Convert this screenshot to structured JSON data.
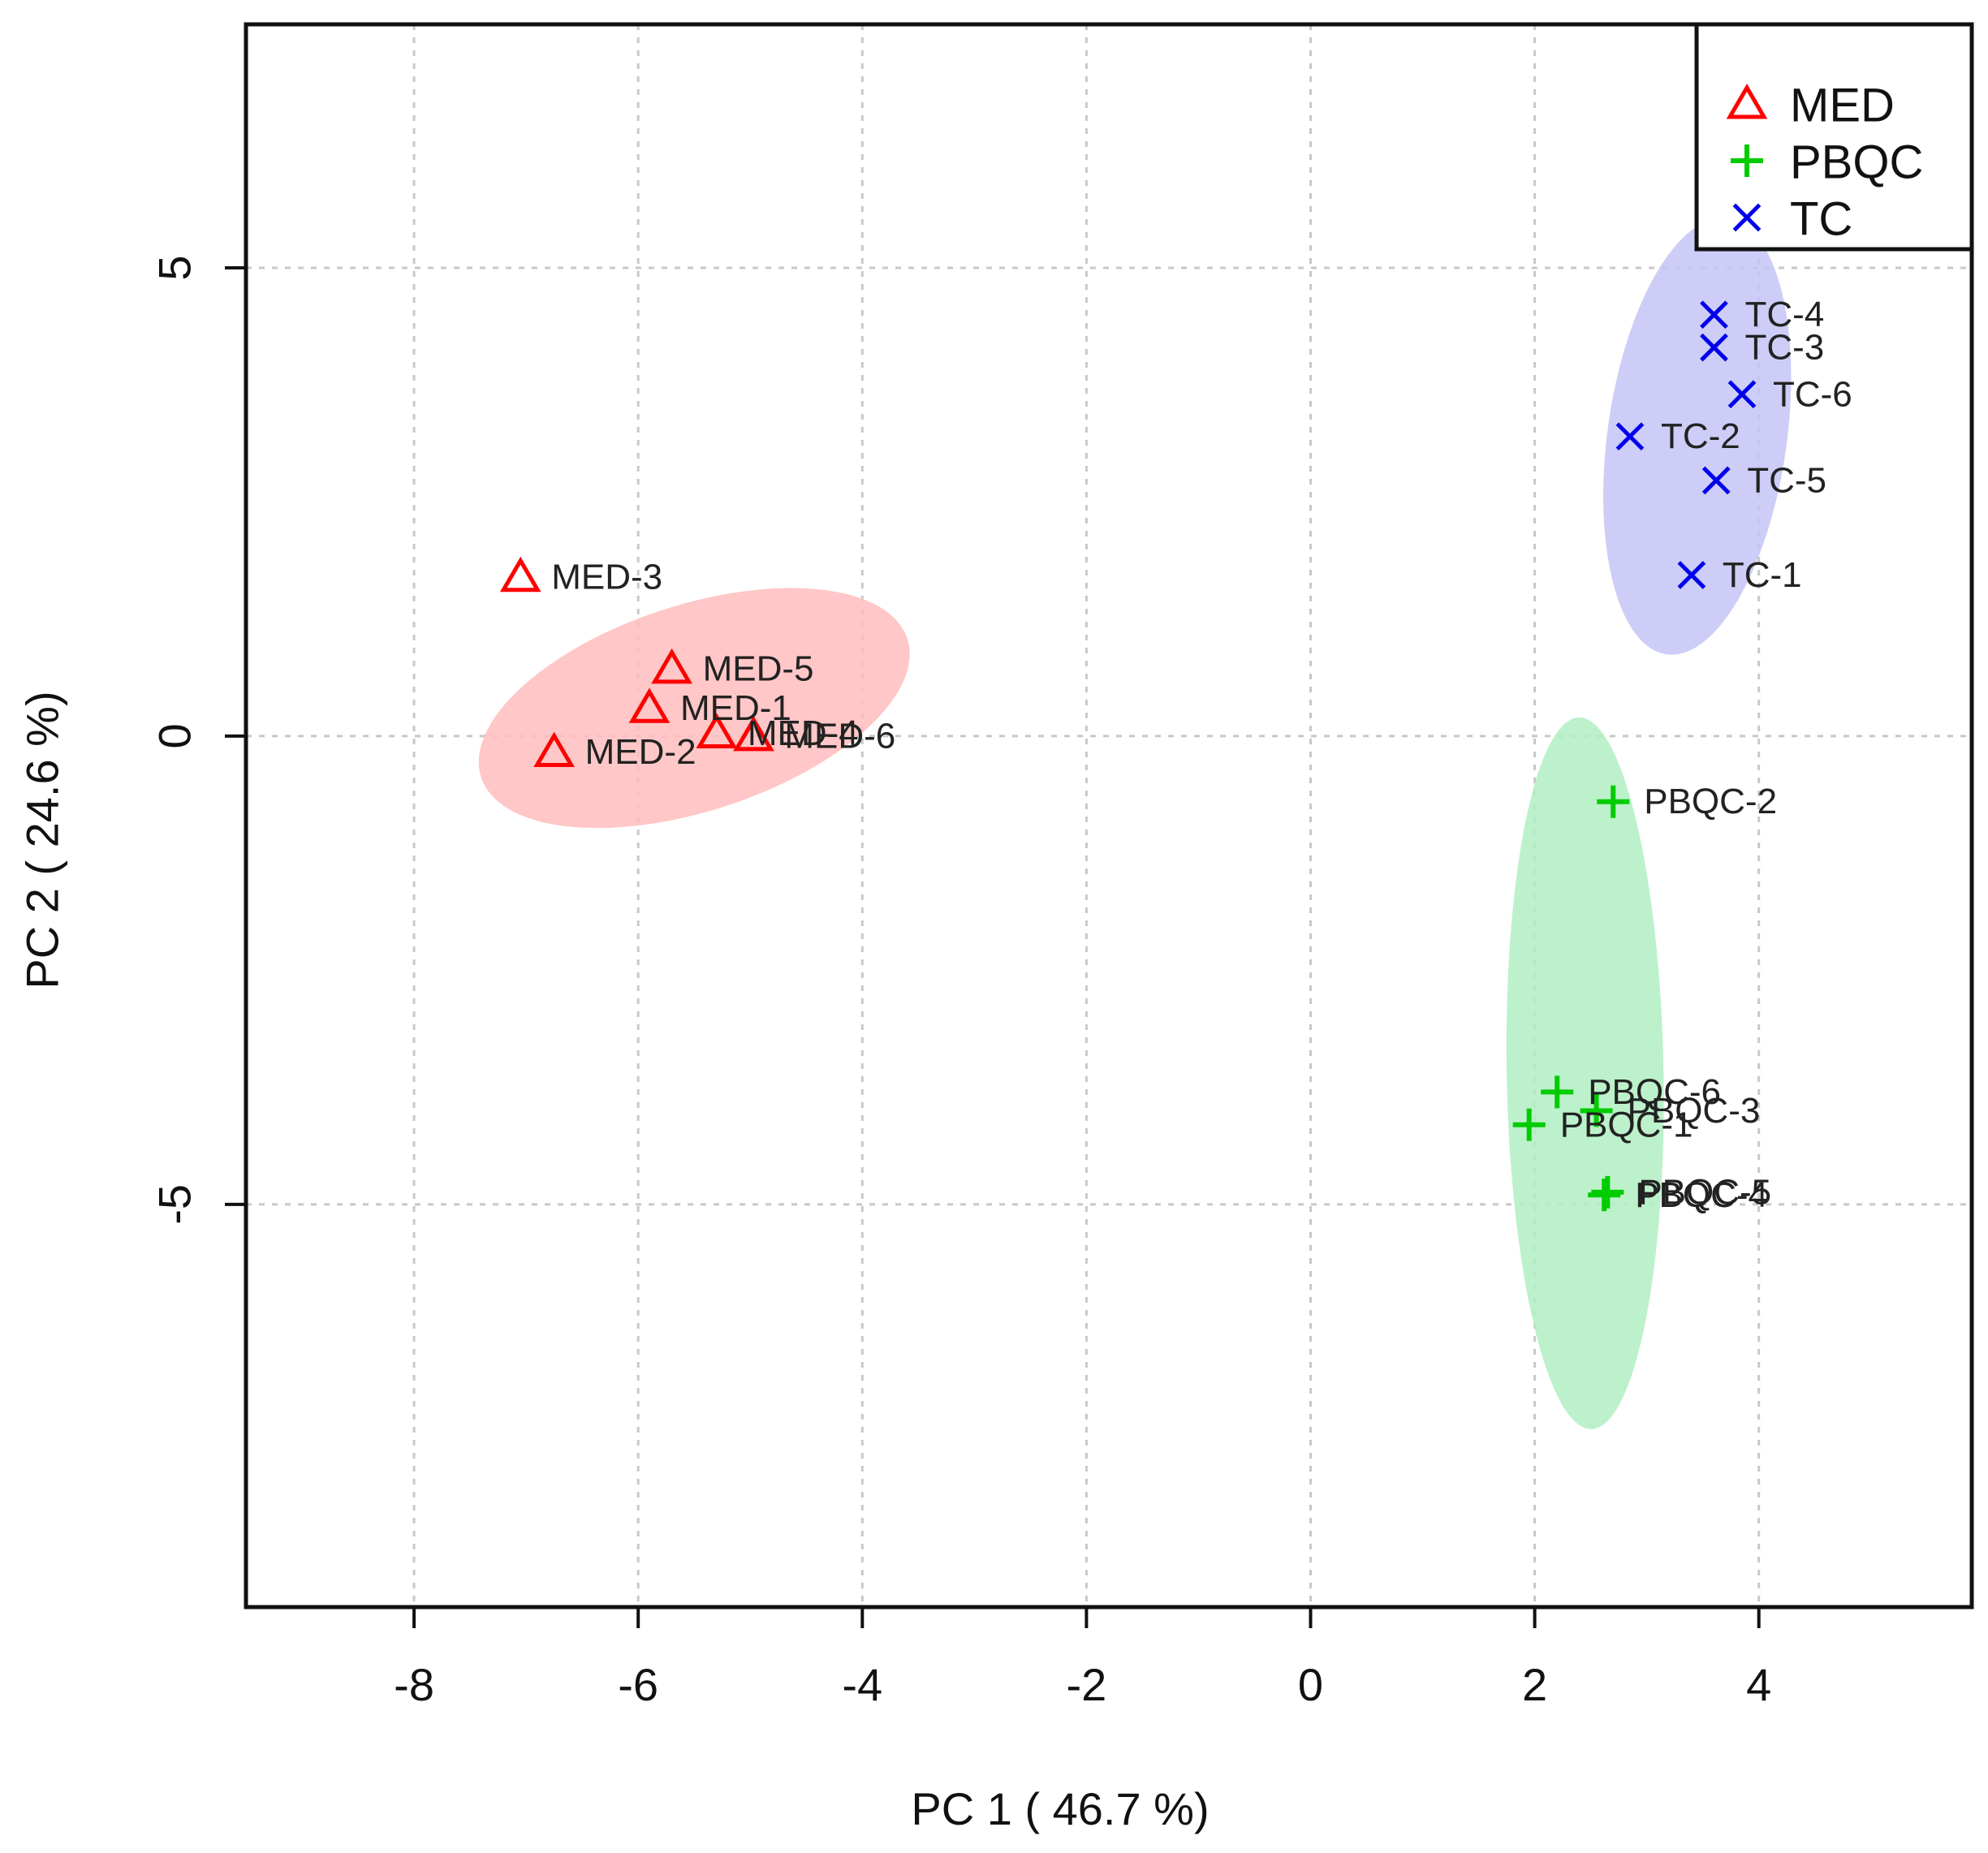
{
  "chart_data": {
    "type": "scatter",
    "title": "",
    "xlabel": "PC 1 ( 46.7 %)",
    "ylabel": "PC 2 ( 24.6 %)",
    "xlim": [
      -9.5,
      5.9
    ],
    "ylim": [
      -9.3,
      7.6
    ],
    "grid": true,
    "legend_position": "top-right",
    "x_ticks": [
      -8,
      -6,
      -4,
      -2,
      0,
      2,
      4
    ],
    "x_tick_labels": [
      "-8",
      "-6",
      "-4",
      "-2",
      "0",
      "2",
      "4"
    ],
    "y_ticks": [
      -5,
      0,
      5
    ],
    "y_tick_labels": [
      "-5",
      "0",
      "5"
    ],
    "series": [
      {
        "name": "MED",
        "marker": "triangle",
        "color": "#ff0000",
        "fill": "#ffbdbd",
        "ellipse": {
          "cx": -5.5,
          "cy": 0.3,
          "rx": 2.0,
          "ry": 1.1,
          "angle_deg": -18
        },
        "points": [
          {
            "label": "MED-3",
            "x": -7.05,
            "y": 1.7
          },
          {
            "label": "MED-5",
            "x": -5.7,
            "y": 0.72
          },
          {
            "label": "MED-1",
            "x": -5.9,
            "y": 0.3
          },
          {
            "label": "MED-4",
            "x": -5.3,
            "y": 0.03
          },
          {
            "label": "MED-6",
            "x": -4.97,
            "y": 0.0
          },
          {
            "label": "MED-2",
            "x": -6.75,
            "y": -0.17
          }
        ]
      },
      {
        "name": "PBQC",
        "marker": "plus",
        "color": "#00cc00",
        "fill": "#b0eec2",
        "ellipse": {
          "cx": 2.45,
          "cy": -3.6,
          "rx": 0.7,
          "ry": 3.8,
          "angle_deg": -1
        },
        "points": [
          {
            "label": "PBQC-2",
            "x": 2.7,
            "y": -0.7
          },
          {
            "label": "PBQC-6",
            "x": 2.2,
            "y": -3.8
          },
          {
            "label": "PBQC-3",
            "x": 2.55,
            "y": -4.0
          },
          {
            "label": "PBQC-1",
            "x": 1.95,
            "y": -4.15
          },
          {
            "label": "PBQC-4",
            "x": 2.62,
            "y": -4.9
          },
          {
            "label": "PBQC-5",
            "x": 2.65,
            "y": -4.87
          }
        ]
      },
      {
        "name": "TC",
        "marker": "x",
        "color": "#0000ee",
        "fill": "#c4c4f6",
        "ellipse": {
          "cx": 3.45,
          "cy": 3.2,
          "rx": 0.8,
          "ry": 2.35,
          "angle_deg": 8
        },
        "points": [
          {
            "label": "TC-4",
            "x": 3.6,
            "y": 4.5
          },
          {
            "label": "TC-3",
            "x": 3.6,
            "y": 4.15
          },
          {
            "label": "TC-6",
            "x": 3.85,
            "y": 3.65
          },
          {
            "label": "TC-2",
            "x": 2.85,
            "y": 3.2
          },
          {
            "label": "TC-5",
            "x": 3.62,
            "y": 2.73
          },
          {
            "label": "TC-1",
            "x": 3.4,
            "y": 1.72
          }
        ]
      }
    ]
  }
}
